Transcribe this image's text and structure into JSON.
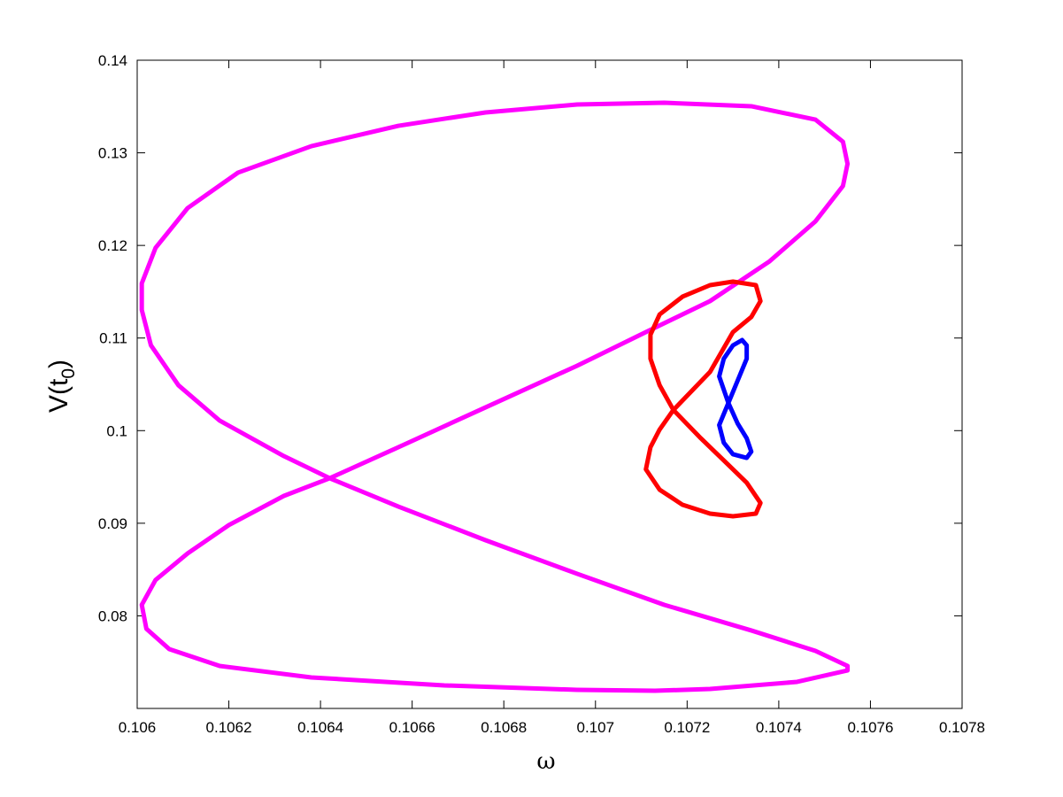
{
  "chart_data": {
    "type": "line",
    "xlabel": "ω",
    "ylabel": "V(t0)",
    "xlim": [
      0.106,
      0.1078
    ],
    "xticks": [
      0.106,
      0.1062,
      0.1064,
      0.1066,
      0.1068,
      0.107,
      0.1072,
      0.1074,
      0.1076,
      0.1078
    ],
    "ylim": [
      0.07,
      0.14
    ],
    "yticks": [
      0.08,
      0.09,
      0.1,
      0.11,
      0.12,
      0.13,
      0.14
    ],
    "grid": false,
    "series": [
      {
        "color": "#ff00ff",
        "x": [
          0.10755,
          0.10744,
          0.10725,
          0.10713,
          0.10696,
          0.10667,
          0.10638,
          0.10618,
          0.10607,
          0.10602,
          0.10601,
          0.10604,
          0.10611,
          0.1062,
          0.10632,
          0.10642,
          0.10657,
          0.10676,
          0.10696,
          0.10711,
          0.10725,
          0.10738,
          0.10748,
          0.10754,
          0.10755,
          0.10754,
          0.10748,
          0.10734,
          0.10715,
          0.10696,
          0.10676,
          0.10657,
          0.10638,
          0.10622,
          0.10611,
          0.10604,
          0.10601,
          0.10601,
          0.10603,
          0.10609,
          0.10618,
          0.10632,
          0.10642,
          0.10657,
          0.10676,
          0.10696,
          0.10715,
          0.10734,
          0.10748,
          0.10755,
          0.10755
        ],
        "values": [
          0.07411,
          0.07287,
          0.0721,
          0.07191,
          0.07201,
          0.07249,
          0.07335,
          0.07459,
          0.07641,
          0.07861,
          0.08119,
          0.08387,
          0.08674,
          0.0898,
          0.09295,
          0.09486,
          0.09821,
          0.10251,
          0.10701,
          0.11064,
          0.11399,
          0.11829,
          0.1226,
          0.12642,
          0.12881,
          0.1312,
          0.13359,
          0.13503,
          0.13541,
          0.13522,
          0.13436,
          0.13292,
          0.13072,
          0.12786,
          0.12403,
          0.11973,
          0.1159,
          0.11303,
          0.10921,
          0.1049,
          0.10108,
          0.09725,
          0.09486,
          0.0918,
          0.08817,
          0.08454,
          0.08119,
          0.07842,
          0.07622,
          0.07459,
          0.07411
        ]
      },
      {
        "color": "#ff0000",
        "x": [
          0.10717,
          0.10725,
          0.1073,
          0.10734,
          0.10736,
          0.10735,
          0.1073,
          0.10725,
          0.10719,
          0.10714,
          0.10712,
          0.10712,
          0.10714,
          0.10717,
          0.10723,
          0.10728,
          0.10733,
          0.10736,
          0.10735,
          0.1073,
          0.10725,
          0.10719,
          0.10714,
          0.10711,
          0.10712,
          0.10714,
          0.10717
        ],
        "values": [
          0.10223,
          0.10634,
          0.11064,
          0.11227,
          0.11399,
          0.11571,
          0.11609,
          0.11571,
          0.11447,
          0.11255,
          0.11036,
          0.10777,
          0.1049,
          0.10223,
          0.09917,
          0.09678,
          0.09438,
          0.09219,
          0.09104,
          0.09075,
          0.09104,
          0.09199,
          0.09362,
          0.09582,
          0.09821,
          0.10012,
          0.10223
        ]
      },
      {
        "color": "#0000ff",
        "x": [
          0.10729,
          0.10731,
          0.10733,
          0.10733,
          0.10732,
          0.1073,
          0.10728,
          0.10727,
          0.10729,
          0.10731,
          0.10733,
          0.10734,
          0.10733,
          0.1073,
          0.10728,
          0.10727,
          0.10729
        ],
        "values": [
          0.10299,
          0.10538,
          0.10777,
          0.10921,
          0.10978,
          0.10921,
          0.10777,
          0.10586,
          0.10299,
          0.10079,
          0.09917,
          0.09773,
          0.09706,
          0.09745,
          0.09869,
          0.1006,
          0.10299
        ]
      }
    ]
  }
}
